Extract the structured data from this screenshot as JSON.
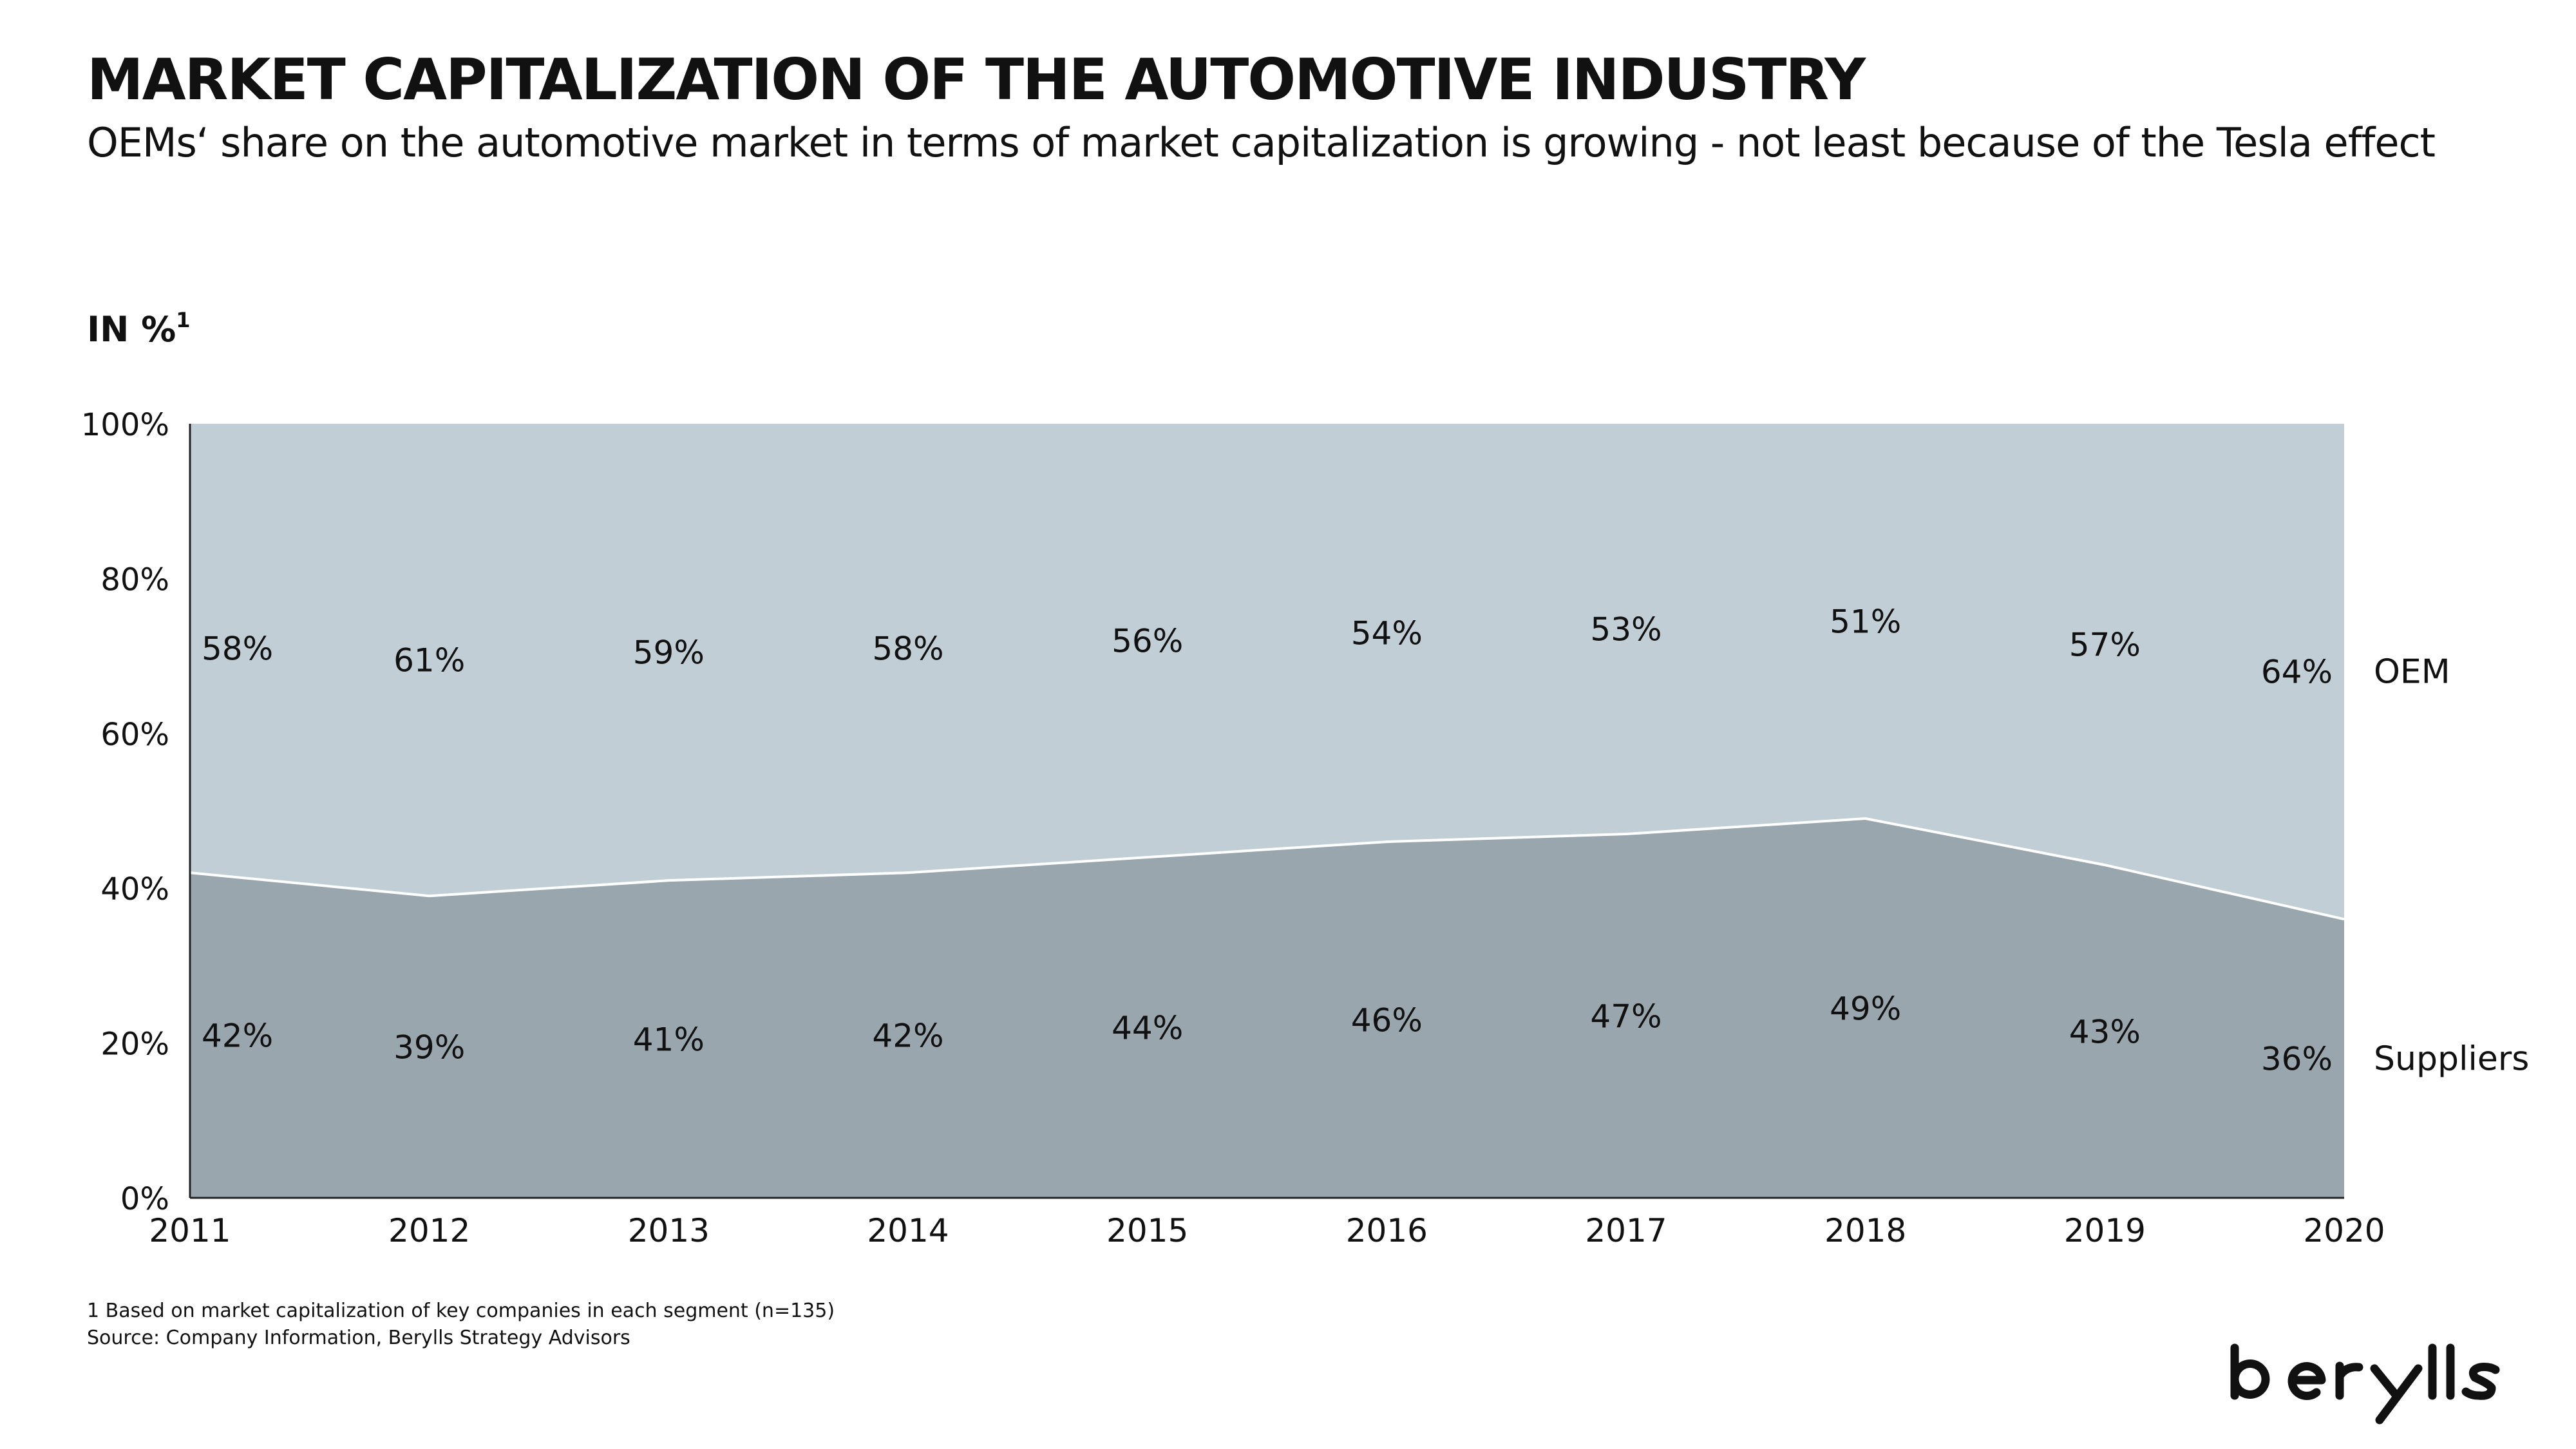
{
  "title": "MARKET CAPITALIZATION OF THE AUTOMOTIVE INDUSTRY",
  "subtitle": "OEMs‘ share on the automotive market in terms of market capitalization is growing - not least because of the Tesla effect",
  "unit_label": "IN %",
  "unit_footnote_mark": "1",
  "footnotes": {
    "note_1": "1 Based on market capitalization of key companies in each segment (n=135)",
    "source": "Source: Company Information, Berylls Strategy Advisors"
  },
  "logo": {
    "text": "berylls",
    "icon": "berylls-logo"
  },
  "colors": {
    "oem_area": "#c2ced6",
    "suppliers_area": "#9aa6ad",
    "boundary_line": "#ffffff",
    "axis": "#222222",
    "text": "#111111"
  },
  "chart_data": {
    "type": "area",
    "stacked": true,
    "x": [
      "2011",
      "2012",
      "2013",
      "2014",
      "2015",
      "2016",
      "2017",
      "2018",
      "2019",
      "2020"
    ],
    "series": [
      {
        "name": "Suppliers",
        "values": [
          42,
          39,
          41,
          42,
          44,
          46,
          47,
          49,
          43,
          36
        ],
        "labels": [
          "42%",
          "39%",
          "41%",
          "42%",
          "44%",
          "46%",
          "47%",
          "49%",
          "43%",
          "36%"
        ]
      },
      {
        "name": "OEM",
        "values": [
          58,
          61,
          59,
          58,
          56,
          54,
          53,
          51,
          57,
          64
        ],
        "labels": [
          "58%",
          "61%",
          "59%",
          "58%",
          "56%",
          "54%",
          "53%",
          "51%",
          "57%",
          "64%"
        ]
      }
    ],
    "yticks": [
      "0%",
      "20%",
      "40%",
      "60%",
      "80%",
      "100%"
    ],
    "ylim": [
      0,
      100
    ],
    "grid": false,
    "legend": "right"
  }
}
